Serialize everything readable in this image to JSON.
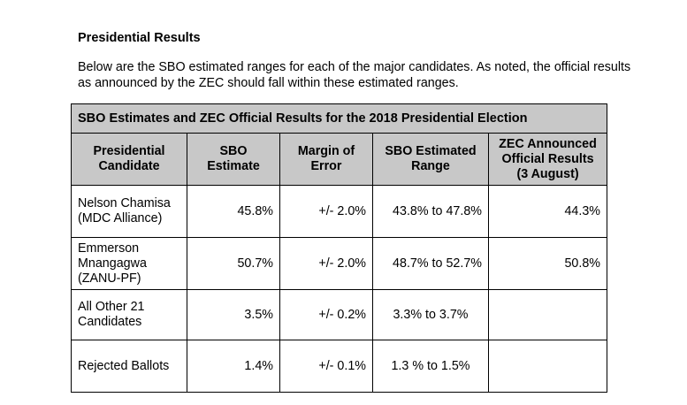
{
  "heading": "Presidential Results",
  "intro": "Below are the SBO estimated ranges for each of the major candidates. As noted, the official results as announced by the ZEC should fall within these estimated ranges.",
  "table": {
    "caption": "SBO Estimates and ZEC Official Results for the 2018 Presidential Election",
    "headers": [
      "Presidential Candidate",
      "SBO Estimate",
      "Margin of Error",
      "SBO Estimated Range",
      "ZEC Announced Official Results (3 August)"
    ],
    "rows": [
      {
        "candidate": "Nelson Chamisa (MDC Alliance)",
        "estimate": "45.8%",
        "margin": "+/- 2.0%",
        "range": "43.8% to 47.8%",
        "official": "44.3%"
      },
      {
        "candidate": "Emmerson Mnangagwa (ZANU-PF)",
        "estimate": "50.7%",
        "margin": "+/- 2.0%",
        "range": "48.7% to 52.7%",
        "official": "50.8%"
      },
      {
        "candidate": "All Other 21 Candidates",
        "estimate": "3.5%",
        "margin": "+/- 0.2%",
        "range": "3.3% to 3.7%",
        "official": ""
      },
      {
        "candidate": "Rejected Ballots",
        "estimate": "1.4%",
        "margin": "+/- 0.1%",
        "range": "1.3 % to 1.5%",
        "official": ""
      }
    ]
  }
}
